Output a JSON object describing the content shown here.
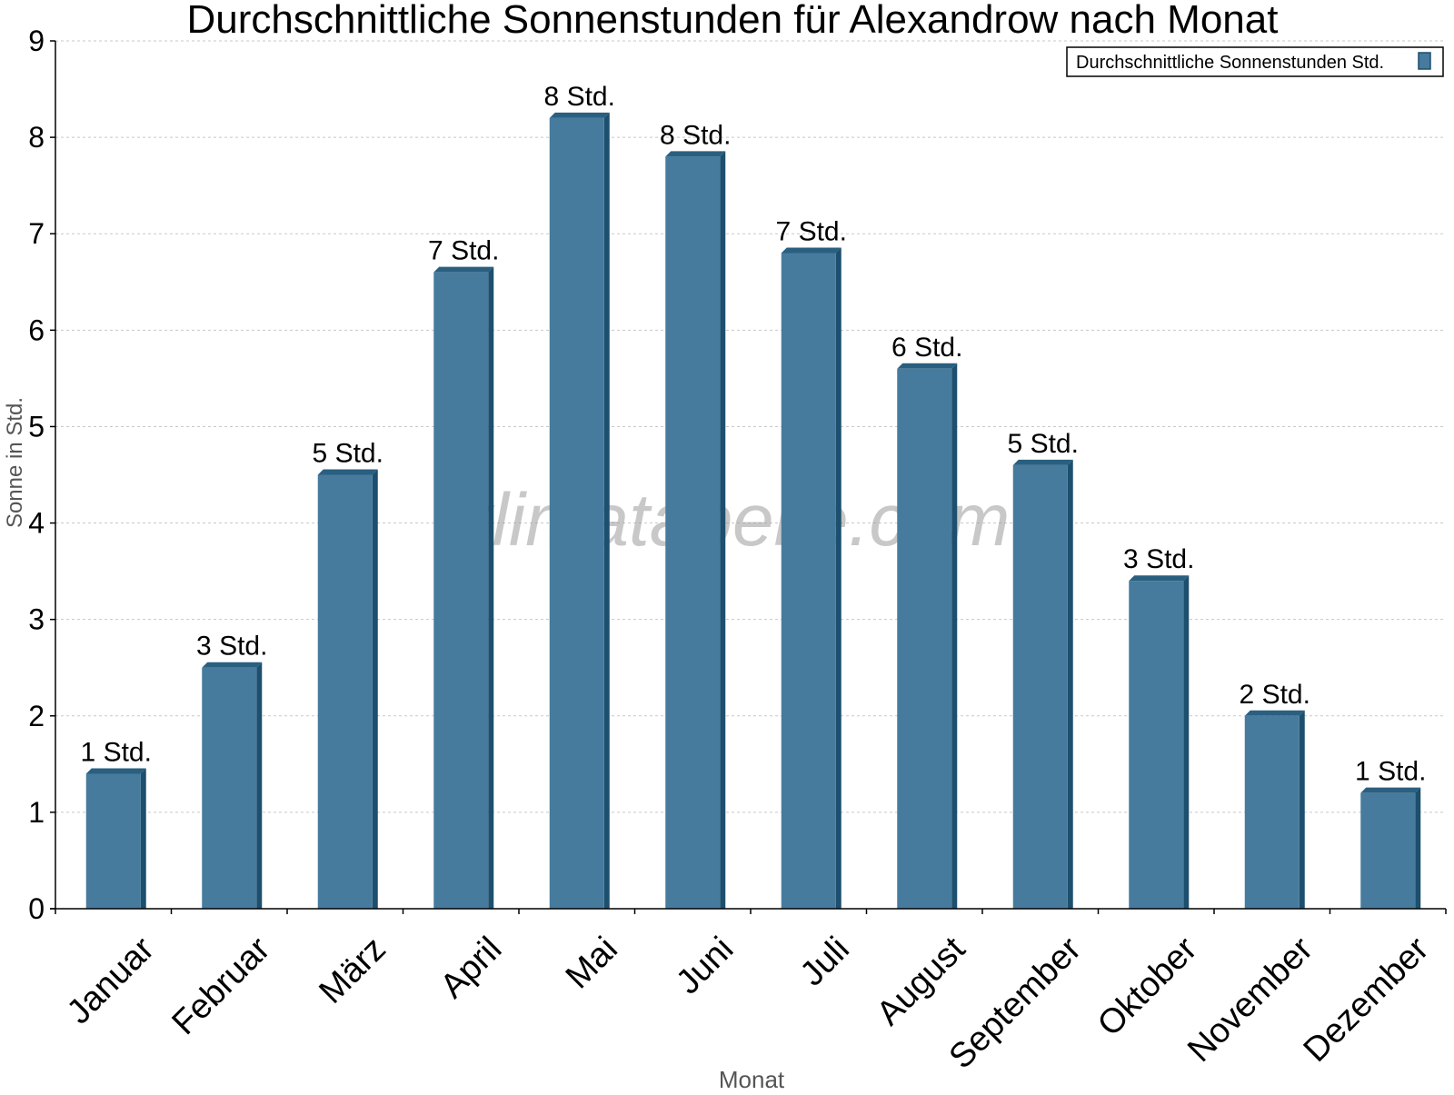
{
  "chart_data": {
    "type": "bar",
    "title": "Durchschnittliche Sonnenstunden für Alexandrow nach Monat",
    "xlabel": "Monat",
    "ylabel": "Sonne in Std.",
    "watermark": "klimatabelle.com",
    "categories": [
      "Januar",
      "Februar",
      "März",
      "April",
      "Mai",
      "Juni",
      "Juli",
      "August",
      "September",
      "Oktober",
      "November",
      "Dezember"
    ],
    "series": [
      {
        "name": "Durchschnittliche Sonnenstunden Std.",
        "values": [
          1.4,
          2.5,
          4.5,
          6.6,
          8.2,
          7.8,
          6.8,
          5.6,
          4.6,
          3.4,
          2.0,
          1.2
        ],
        "data_labels": [
          "1 Std.",
          "3 Std.",
          "5 Std.",
          "7 Std.",
          "8 Std.",
          "8 Std.",
          "7 Std.",
          "6 Std.",
          "5 Std.",
          "3 Std.",
          "2 Std.",
          "1 Std."
        ]
      }
    ],
    "ylim": [
      0,
      9
    ],
    "yticks": [
      0,
      1,
      2,
      3,
      4,
      5,
      6,
      7,
      8,
      9
    ],
    "grid": true,
    "legend_position": "top-right",
    "colors": {
      "bar_front": "#467b9e",
      "bar_side": "#1d4f6e",
      "bar_top": "#2a5f80",
      "grid": "#c8c8c8",
      "axis_label": "#555555"
    }
  }
}
